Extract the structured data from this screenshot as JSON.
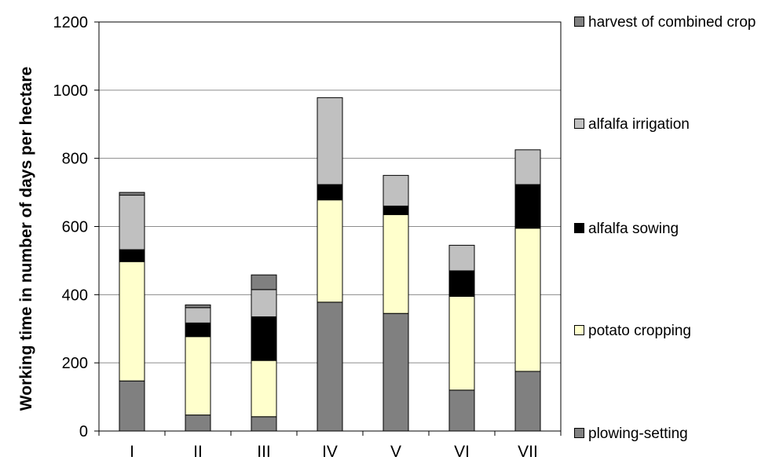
{
  "chart_data": {
    "type": "bar",
    "stacked": true,
    "title": "",
    "xlabel": "",
    "ylabel": "Working time in number of days per hectare",
    "ylim": [
      0,
      1200
    ],
    "yticks": [
      0,
      200,
      400,
      600,
      800,
      1000,
      1200
    ],
    "grid": true,
    "legend_position": "right",
    "categories": [
      "I",
      "II",
      "III",
      "IV",
      "V",
      "VI",
      "VII"
    ],
    "series": [
      {
        "name": "plowing-setting",
        "color": "#808080",
        "values": [
          147,
          47,
          42,
          378,
          345,
          120,
          175
        ]
      },
      {
        "name": "potato cropping",
        "color": "#ffffcc",
        "values": [
          350,
          230,
          165,
          300,
          290,
          275,
          420
        ]
      },
      {
        "name": "alfalfa sowing",
        "color": "#000000",
        "values": [
          35,
          40,
          128,
          45,
          25,
          75,
          128
        ]
      },
      {
        "name": "alfalfa irrigation",
        "color": "#c0c0c0",
        "values": [
          160,
          45,
          80,
          255,
          90,
          75,
          102
        ]
      },
      {
        "name": "harvest of combined crop",
        "color": "#808080",
        "values": [
          8,
          8,
          43,
          0,
          0,
          0,
          0
        ]
      }
    ]
  }
}
